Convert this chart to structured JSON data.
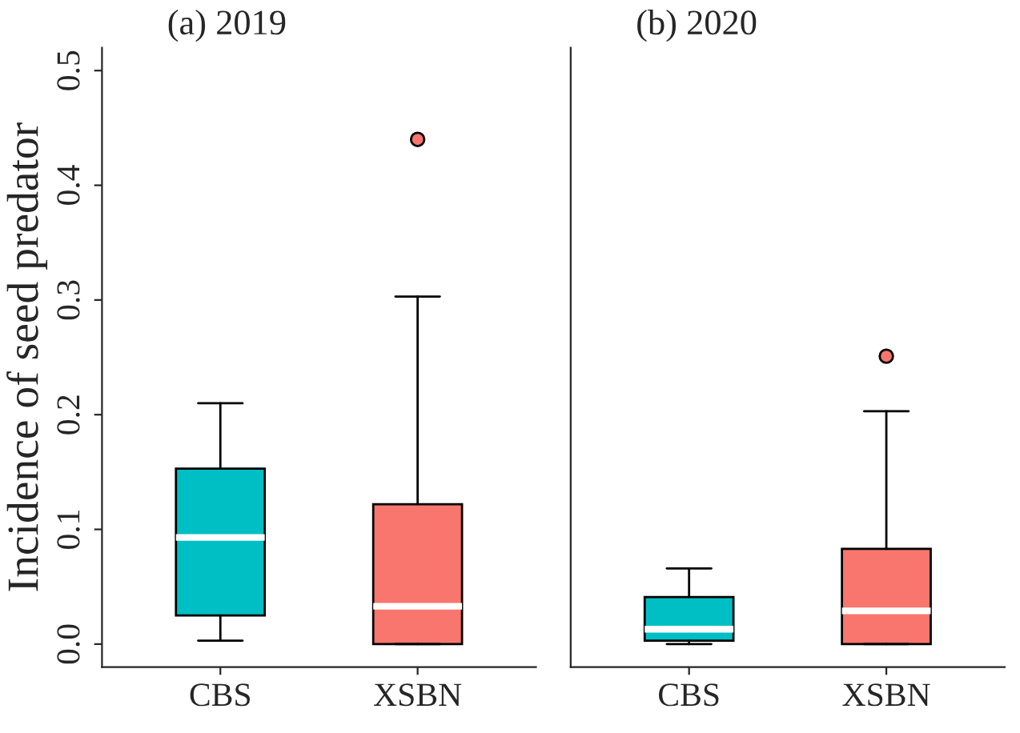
{
  "chart_data": [
    {
      "type": "box",
      "title": "(a) 2019",
      "ylabel": "Incidence of seed predator",
      "categories": [
        "CBS",
        "XSBN"
      ],
      "colors": [
        "#00bfc4",
        "#f8766d"
      ],
      "boxes": [
        {
          "low": 0.003,
          "q1": 0.025,
          "median": 0.093,
          "q3": 0.153,
          "high": 0.21
        },
        {
          "low": 0.0,
          "q1": 0.0,
          "median": 0.033,
          "q3": 0.122,
          "high": 0.303,
          "outliers": [
            0.44
          ]
        }
      ],
      "ylim": [
        -0.02,
        0.52
      ],
      "yticks": [
        {
          "value": 0,
          "label": "0.0"
        },
        0.1,
        0.2,
        0.3,
        0.4,
        0.5
      ],
      "grid": false,
      "legend": false
    },
    {
      "type": "box",
      "title": "(b) 2020",
      "categories": [
        "CBS",
        "XSBN"
      ],
      "colors": [
        "#00bfc4",
        "#f8766d"
      ],
      "boxes": [
        {
          "low": 0.0,
          "q1": 0.003,
          "median": 0.013,
          "q3": 0.041,
          "high": 0.066
        },
        {
          "low": 0.0,
          "q1": 0.0,
          "median": 0.029,
          "q3": 0.083,
          "high": 0.203,
          "outliers": [
            0.251
          ]
        }
      ],
      "ylim": [
        -0.02,
        0.52
      ],
      "tick_labels": "x",
      "grid": false,
      "legend": false
    }
  ]
}
